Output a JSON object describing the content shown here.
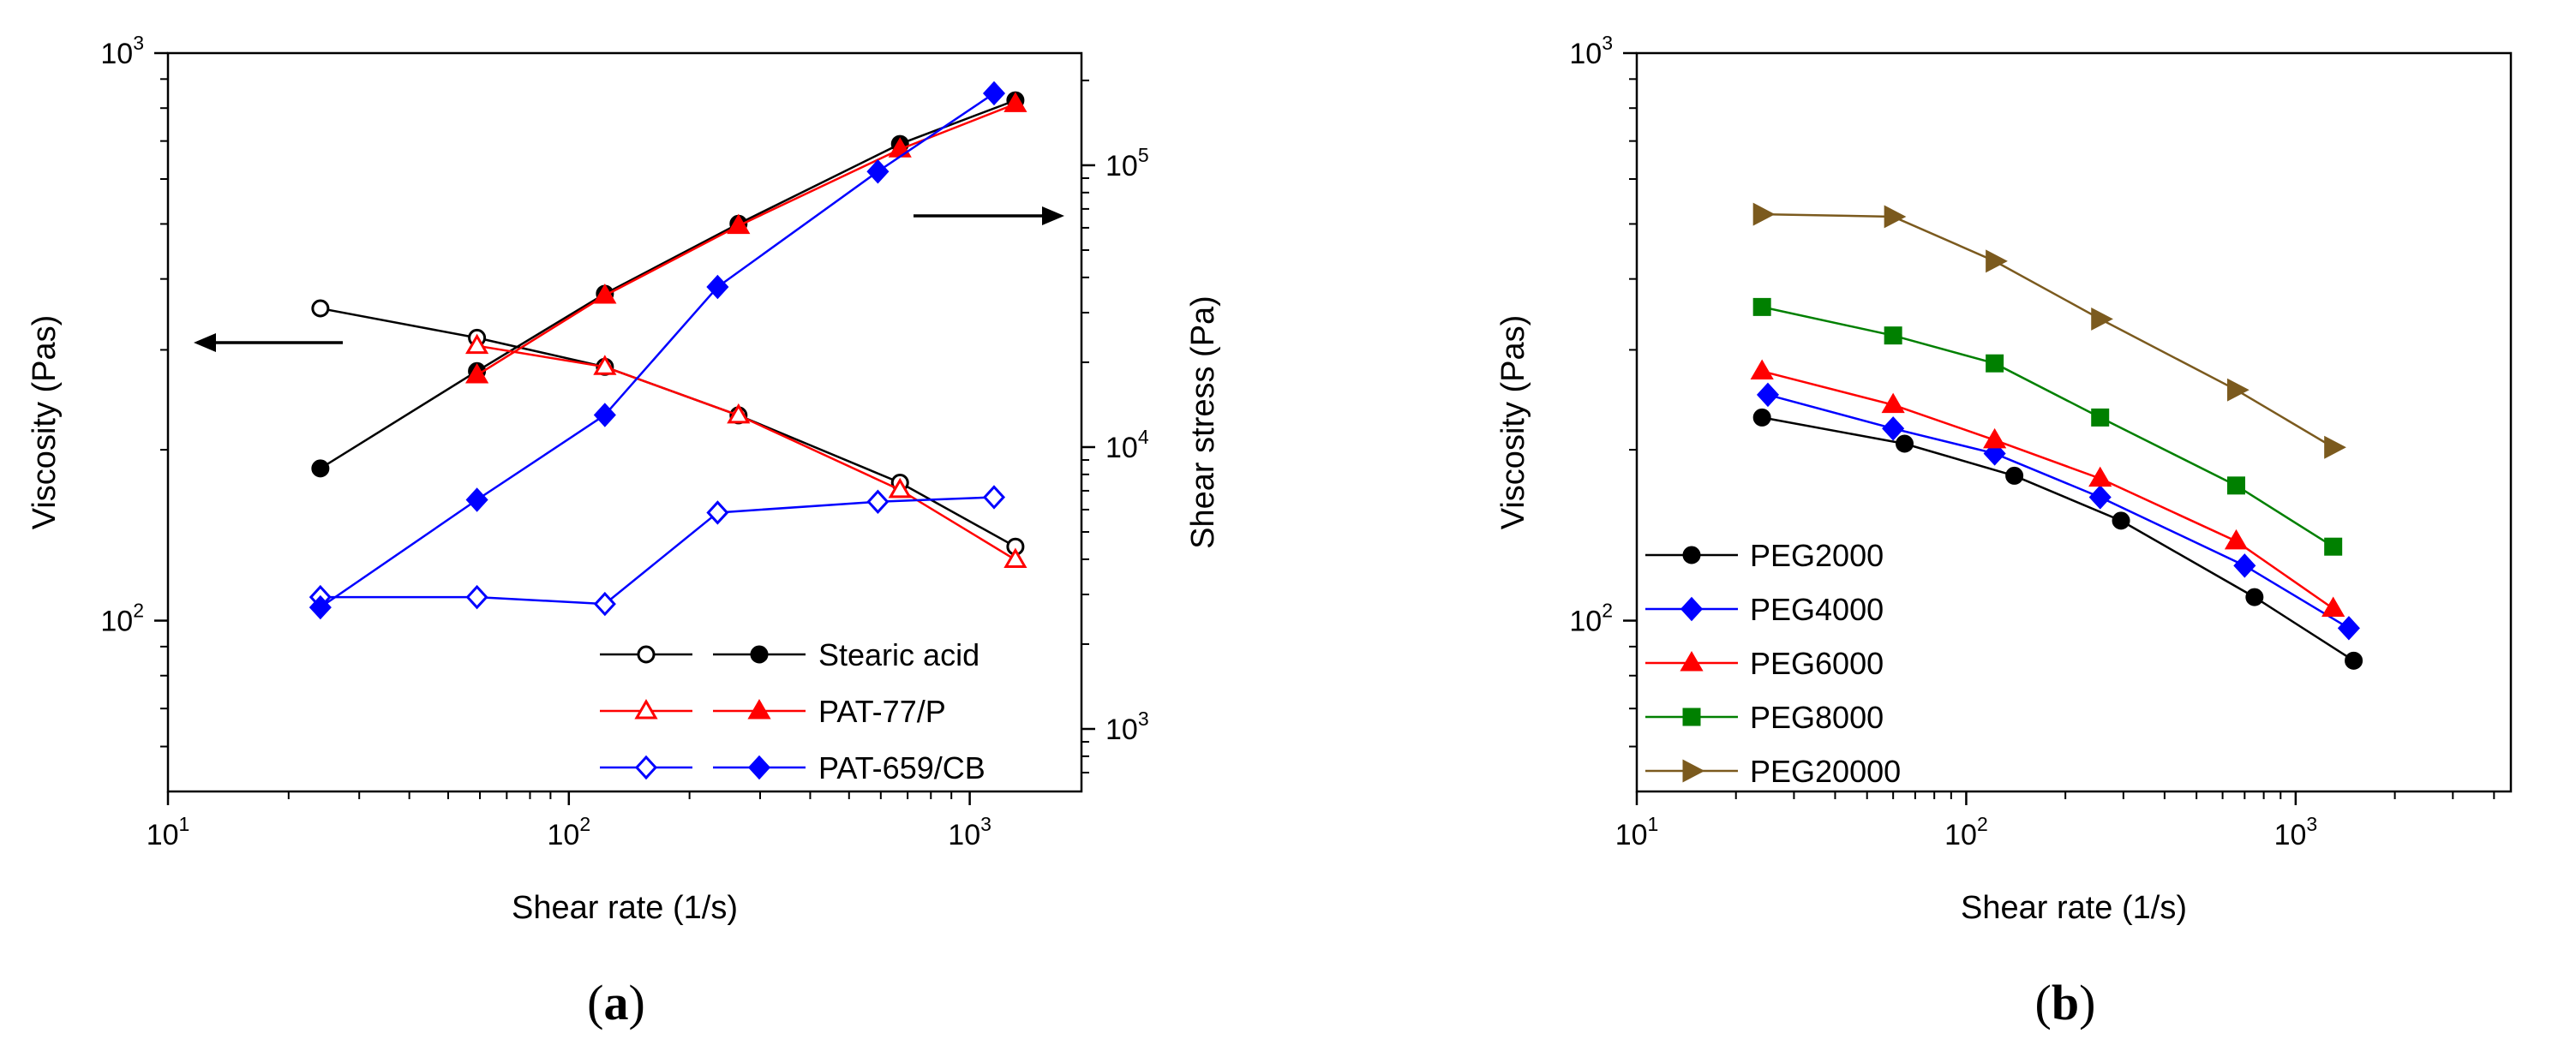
{
  "chart_data": [
    {
      "id": "a",
      "type": "line",
      "panel_label": "(a)",
      "panel_letter": "a",
      "xlabel": "Shear rate (1/s)",
      "ylabel": "Viscosity (Pas)",
      "y2label": "Shear stress (Pa)",
      "xscale": "log",
      "yscale": "log",
      "y2scale": "log",
      "xlim": [
        10,
        1900
      ],
      "ylim": [
        50,
        1000
      ],
      "y2lim": [
        600,
        250000
      ],
      "x_ticks": [
        {
          "value": 10,
          "base": "10",
          "exp": "1"
        },
        {
          "value": 100,
          "base": "10",
          "exp": "2"
        },
        {
          "value": 1000,
          "base": "10",
          "exp": "3"
        }
      ],
      "y_ticks": [
        {
          "value": 100,
          "base": "10",
          "exp": "2"
        },
        {
          "value": 1000,
          "base": "10",
          "exp": "3"
        }
      ],
      "y2_ticks": [
        {
          "value": 1000,
          "base": "10",
          "exp": "3"
        },
        {
          "value": 10000,
          "base": "10",
          "exp": "4"
        },
        {
          "value": 100000,
          "base": "10",
          "exp": "5"
        }
      ],
      "grid": false,
      "legend": "bottom-right",
      "legend_entries": [
        "Stearic acid",
        "PAT-77/P",
        "PAT-659/CB"
      ],
      "annotations": [
        {
          "type": "arrow",
          "direction": "left",
          "meaning": "viscosity curves read on left axis"
        },
        {
          "type": "arrow",
          "direction": "right",
          "meaning": "shear stress curves read on right axis"
        }
      ],
      "series": [
        {
          "name": "Stearic acid",
          "quantity": "viscosity",
          "axis": "left",
          "color": "#000000",
          "marker": "circle",
          "filled": false,
          "x": [
            24,
            59,
            123,
            265,
            670,
            1300
          ],
          "y": [
            355,
            315,
            280,
            230,
            175,
            135
          ]
        },
        {
          "name": "Stearic acid",
          "quantity": "shear stress",
          "axis": "right",
          "color": "#000000",
          "marker": "circle",
          "filled": true,
          "x": [
            24,
            59,
            123,
            265,
            670,
            1300
          ],
          "y": [
            8400,
            18600,
            35000,
            62000,
            119000,
            170000
          ]
        },
        {
          "name": "PAT-77/P",
          "quantity": "viscosity",
          "axis": "left",
          "color": "#ff0000",
          "marker": "triangle",
          "filled": false,
          "x": [
            59,
            123,
            265,
            670,
            1300
          ],
          "y": [
            305,
            280,
            230,
            170,
            128
          ]
        },
        {
          "name": "PAT-77/P",
          "quantity": "shear stress",
          "axis": "right",
          "color": "#ff0000",
          "marker": "triangle",
          "filled": true,
          "x": [
            59,
            123,
            265,
            670,
            1300
          ],
          "y": [
            18000,
            34500,
            61000,
            114000,
            165000
          ]
        },
        {
          "name": "PAT-659/CB",
          "quantity": "viscosity",
          "axis": "left",
          "color": "#0000ff",
          "marker": "diamond",
          "filled": false,
          "x": [
            24,
            59,
            123,
            235,
            590,
            1150
          ],
          "y": [
            110,
            110,
            107,
            155,
            162,
            165
          ]
        },
        {
          "name": "PAT-659/CB",
          "quantity": "shear stress",
          "axis": "right",
          "color": "#0000ff",
          "marker": "diamond",
          "filled": true,
          "x": [
            24,
            59,
            123,
            235,
            590,
            1150
          ],
          "y": [
            2700,
            6500,
            13000,
            37000,
            95000,
            180000
          ]
        }
      ]
    },
    {
      "id": "b",
      "type": "line",
      "panel_label": "(b)",
      "panel_letter": "b",
      "xlabel": "Shear rate (1/s)",
      "ylabel": "Viscosity (Pas)",
      "xscale": "log",
      "yscale": "log",
      "xlim": [
        10,
        4500
      ],
      "ylim": [
        50,
        1000
      ],
      "x_ticks": [
        {
          "value": 10,
          "base": "10",
          "exp": "1"
        },
        {
          "value": 100,
          "base": "10",
          "exp": "2"
        },
        {
          "value": 1000,
          "base": "10",
          "exp": "3"
        }
      ],
      "y_ticks": [
        {
          "value": 100,
          "base": "10",
          "exp": "2"
        },
        {
          "value": 1000,
          "base": "10",
          "exp": "3"
        }
      ],
      "grid": false,
      "legend": "bottom-left",
      "series": [
        {
          "name": "PEG2000",
          "color": "#000000",
          "marker": "circle",
          "x": [
            24,
            65,
            140,
            295,
            750,
            1500
          ],
          "y": [
            228,
            205,
            180,
            150,
            110,
            85
          ]
        },
        {
          "name": "PEG4000",
          "color": "#0000ff",
          "marker": "diamond",
          "x": [
            25,
            60,
            122,
            255,
            700,
            1450
          ],
          "y": [
            250,
            218,
            197,
            165,
            125,
            97
          ]
        },
        {
          "name": "PEG6000",
          "color": "#ff0000",
          "marker": "triangle",
          "x": [
            24,
            60,
            122,
            255,
            660,
            1300
          ],
          "y": [
            275,
            240,
            208,
            178,
            138,
            105
          ]
        },
        {
          "name": "PEG8000",
          "color": "#008000",
          "marker": "square",
          "x": [
            24,
            60,
            122,
            255,
            660,
            1300
          ],
          "y": [
            357,
            318,
            284,
            228,
            173,
            135
          ]
        },
        {
          "name": "PEG20000",
          "color": "#7b5a1e",
          "marker": "triangle-right",
          "x": [
            24,
            60,
            122,
            255,
            660,
            1300
          ],
          "y": [
            520,
            515,
            430,
            340,
            255,
            202
          ]
        }
      ]
    }
  ]
}
